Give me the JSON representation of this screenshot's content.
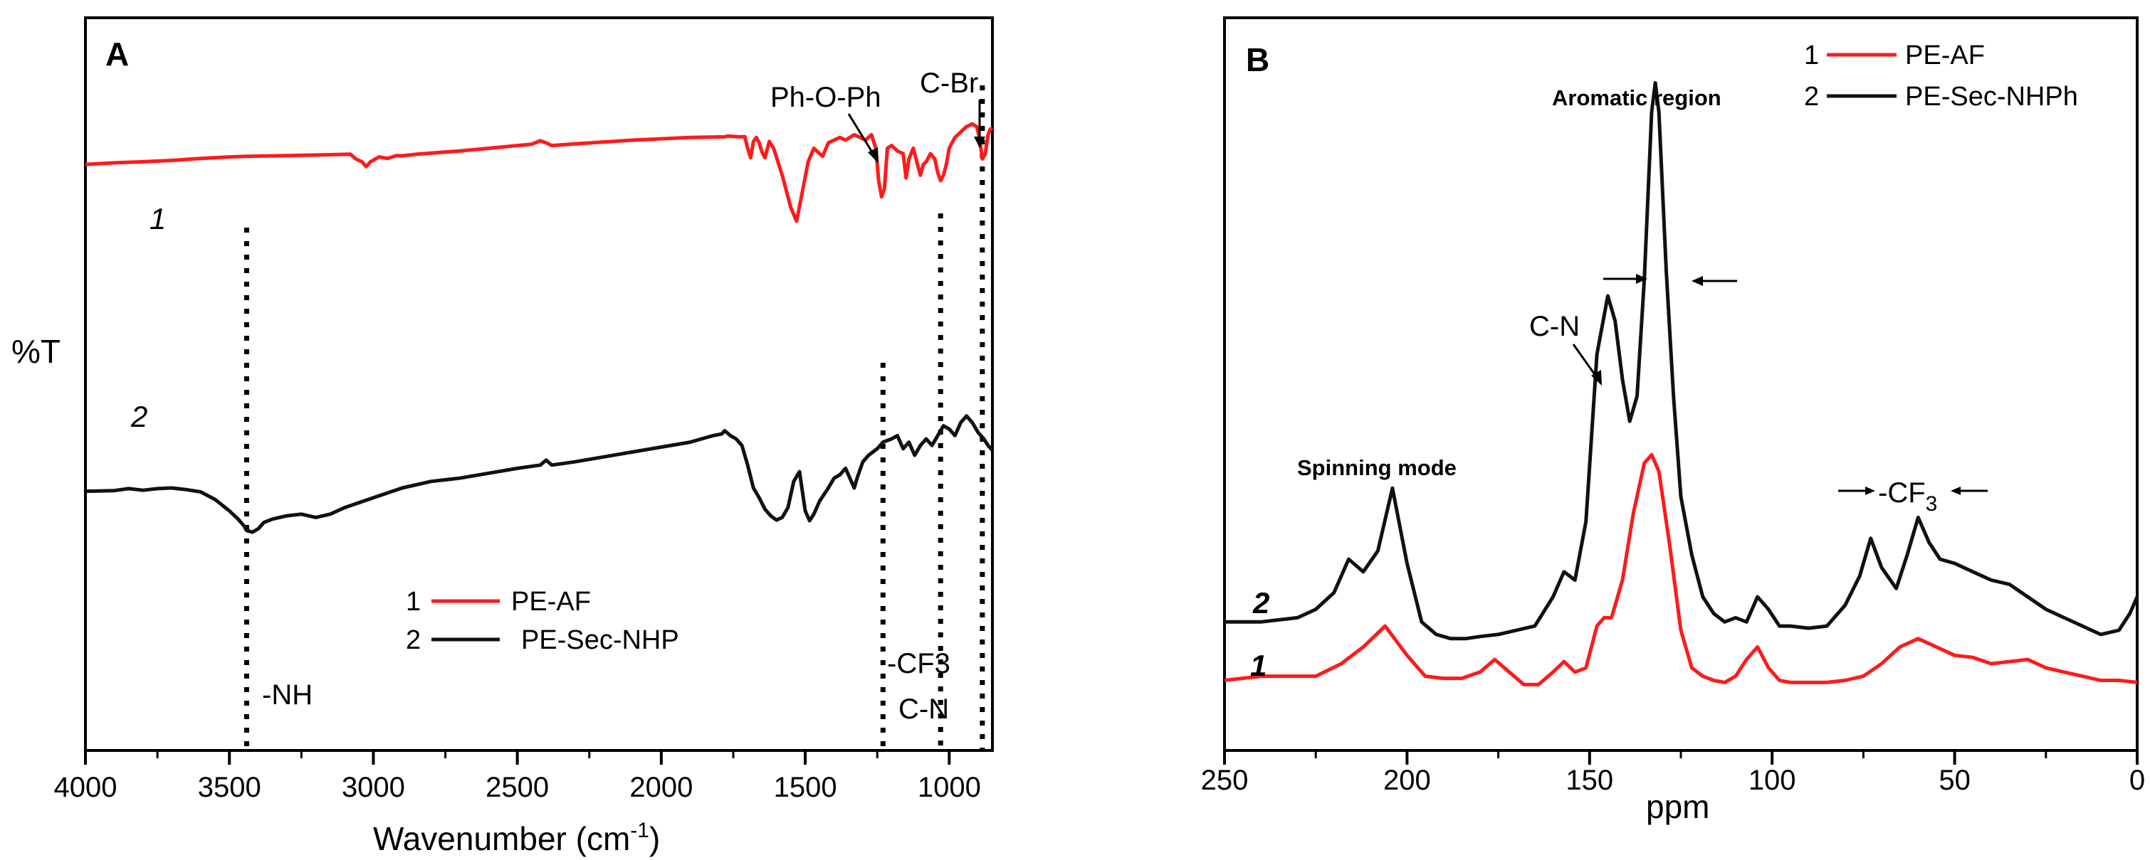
{
  "colors": {
    "series1": "#ff1a1a",
    "series2": "#111111"
  },
  "chart_data": [
    {
      "type": "line",
      "panel": "A",
      "xlabel": "Wavenumber (cm",
      "xlabel_sup": "-1",
      "xlabel_end": ")",
      "ylabel": "%T",
      "xlim": [
        4000,
        850
      ],
      "ylim": [
        0,
        100
      ],
      "x_reversed": true,
      "xticks": [
        4000,
        3500,
        3000,
        2500,
        2000,
        1500,
        1000
      ],
      "xtick_labels": [
        "4000",
        "3500",
        "3000",
        "2500",
        "2000",
        "1500",
        "1000"
      ],
      "legend": {
        "position": "bottom-center",
        "entries": [
          {
            "num": "1",
            "label": "PE-AF"
          },
          {
            "num": "2",
            "label": "PE-Sec-NHP"
          }
        ]
      },
      "curve_labels": [
        "1",
        "2"
      ],
      "vlines": [
        3440,
        1230,
        1030,
        885
      ],
      "annotations": {
        "nh": "-NH",
        "phoph": "Ph-O-Ph",
        "cbr": "C-Br",
        "cf3": "-CF3",
        "cn": "C-N"
      },
      "series": [
        {
          "name": "PE-AF",
          "x": [
            4000,
            3900,
            3800,
            3700,
            3600,
            3500,
            3440,
            3300,
            3150,
            3080,
            3060,
            3040,
            3025,
            3010,
            2980,
            2950,
            2920,
            2900,
            2850,
            2700,
            2500,
            2450,
            2420,
            2400,
            2380,
            2300,
            2100,
            2000,
            1900,
            1780,
            1770,
            1730,
            1710,
            1700,
            1690,
            1680,
            1670,
            1660,
            1650,
            1640,
            1625,
            1610,
            1580,
            1550,
            1530,
            1510,
            1490,
            1470,
            1440,
            1420,
            1400,
            1380,
            1360,
            1330,
            1310,
            1290,
            1270,
            1255,
            1245,
            1235,
            1225,
            1215,
            1200,
            1180,
            1160,
            1150,
            1140,
            1125,
            1110,
            1100,
            1090,
            1080,
            1065,
            1050,
            1040,
            1030,
            1020,
            1010,
            1000,
            980,
            960,
            940,
            920,
            905,
            895,
            885,
            875,
            865,
            858,
            850
          ],
          "y": [
            76,
            76.6,
            77,
            77.5,
            78.2,
            78.8,
            79,
            79.3,
            79.6,
            79.8,
            78,
            77,
            75.2,
            77,
            78.8,
            78.2,
            79.3,
            79.2,
            79.8,
            81,
            83,
            83.5,
            84.8,
            84,
            83,
            83.6,
            85,
            85.5,
            86,
            86.2,
            86.5,
            86.2,
            86.3,
            82,
            78.5,
            84.5,
            86,
            84,
            80.5,
            78.5,
            84.5,
            82,
            72,
            60,
            55,
            66,
            77,
            82,
            79,
            84,
            85,
            86,
            85,
            87,
            86,
            85,
            87,
            82,
            70,
            64,
            67,
            82,
            83,
            81,
            80,
            71,
            78,
            82,
            76,
            72,
            76,
            77,
            80,
            78,
            73,
            70,
            72,
            76,
            82,
            86,
            88,
            90,
            91,
            90,
            86,
            78,
            80,
            87,
            89,
            89.5
          ],
          "y_range": [
            0,
            100
          ]
        },
        {
          "name": "PE-Sec-NHP",
          "x": [
            4000,
            3900,
            3850,
            3800,
            3750,
            3700,
            3650,
            3600,
            3550,
            3500,
            3470,
            3450,
            3440,
            3420,
            3400,
            3380,
            3350,
            3300,
            3250,
            3200,
            3150,
            3100,
            3000,
            2900,
            2800,
            2700,
            2600,
            2500,
            2420,
            2400,
            2380,
            2300,
            2200,
            2100,
            2000,
            1900,
            1820,
            1790,
            1780,
            1760,
            1740,
            1720,
            1700,
            1680,
            1660,
            1640,
            1620,
            1600,
            1580,
            1560,
            1540,
            1520,
            1500,
            1485,
            1470,
            1450,
            1420,
            1400,
            1380,
            1360,
            1340,
            1330,
            1320,
            1300,
            1280,
            1250,
            1230,
            1200,
            1180,
            1160,
            1140,
            1120,
            1100,
            1080,
            1060,
            1040,
            1020,
            1000,
            980,
            960,
            940,
            920,
            900,
            880,
            865,
            850
          ],
          "y": [
            39,
            39.2,
            39.8,
            39.3,
            39.8,
            40,
            39.5,
            38.8,
            36.5,
            33,
            30.5,
            28.5,
            27,
            26.5,
            27.5,
            29.5,
            30.5,
            31.5,
            32,
            31,
            32,
            34,
            37,
            40,
            42,
            43,
            44.5,
            46,
            47,
            48.5,
            47,
            48,
            49.5,
            51,
            52.5,
            54,
            56,
            56.5,
            57.5,
            56,
            55,
            53,
            47,
            40,
            37,
            33.5,
            31.5,
            30.2,
            31,
            34,
            42,
            45,
            33,
            30,
            32,
            36,
            40,
            43,
            44,
            46,
            42,
            40,
            43,
            48,
            50,
            52,
            54,
            55,
            56,
            52,
            54,
            50,
            53,
            55,
            53,
            56,
            59,
            58,
            56,
            60,
            62,
            60,
            57,
            55,
            53,
            51.5
          ],
          "y_range": [
            0,
            100
          ]
        }
      ]
    },
    {
      "type": "line",
      "panel": "B",
      "xlabel": "ppm",
      "xlim": [
        250,
        0
      ],
      "x_reversed": true,
      "xticks": [
        250,
        200,
        150,
        100,
        50,
        0
      ],
      "xtick_labels": [
        "250",
        "200",
        "150",
        "100",
        "50",
        "0"
      ],
      "legend": {
        "position": "top-right",
        "entries": [
          {
            "num": "1",
            "label": "PE-AF"
          },
          {
            "num": "2",
            "label": "PE-Sec-NHPh"
          }
        ]
      },
      "curve_labels": [
        "1",
        "2"
      ],
      "annotations": {
        "aromatic": "Aromatic region",
        "cn": "C-N",
        "spinning": "Spinning mode",
        "cf3_prefix": "-CF",
        "cf3_sub": "3"
      },
      "series": [
        {
          "name": "PE-AF",
          "x": [
            250,
            240,
            225,
            218,
            212,
            206,
            200,
            195,
            190,
            185,
            180,
            176,
            172,
            168,
            164,
            160,
            157,
            154,
            151,
            148,
            146,
            144,
            141,
            138,
            135,
            133,
            131,
            128,
            125,
            122,
            119,
            116,
            113,
            110,
            107,
            104,
            101,
            98,
            95,
            90,
            85,
            80,
            75,
            70,
            65,
            60,
            55,
            50,
            45,
            40,
            35,
            30,
            25,
            20,
            15,
            10,
            5,
            0
          ],
          "y": [
            4,
            5,
            5,
            8,
            12,
            17,
            10,
            5,
            4.5,
            4.5,
            6,
            9,
            6,
            3,
            3,
            6,
            8.5,
            6,
            7,
            17,
            19,
            19,
            28,
            44,
            56,
            58,
            54,
            36,
            16,
            7,
            5,
            4,
            3.5,
            5,
            9,
            12,
            7,
            4,
            3.5,
            3.5,
            3.5,
            4,
            5,
            8,
            12,
            14,
            12,
            10,
            9.5,
            8,
            8.5,
            9,
            7,
            6,
            5,
            4,
            4,
            3.5
          ],
          "y_range": [
            0,
            160
          ]
        },
        {
          "name": "PE-Sec-NHPh",
          "x": [
            250,
            240,
            230,
            225,
            220,
            216,
            212,
            208,
            204,
            200,
            196,
            192,
            188,
            184,
            180,
            175,
            170,
            165,
            160,
            157,
            154,
            151,
            148,
            145,
            143,
            141,
            139,
            137,
            135,
            133,
            132,
            131,
            129,
            127,
            125,
            122,
            119,
            116,
            113,
            110,
            107,
            104,
            101,
            98,
            95,
            90,
            85,
            80,
            76,
            73,
            70,
            66,
            63,
            60,
            57,
            54,
            50,
            45,
            40,
            35,
            30,
            25,
            20,
            15,
            10,
            5,
            2,
            0
          ],
          "y": [
            18,
            18,
            19,
            21,
            25,
            33,
            30,
            35,
            50,
            32,
            18,
            15,
            14,
            14,
            14.5,
            15,
            16,
            17,
            24,
            30,
            28,
            42,
            82,
            96,
            90,
            76,
            66,
            72,
            100,
            140,
            147,
            140,
            102,
            72,
            48,
            34,
            24,
            20,
            18,
            19,
            18,
            24,
            21,
            17,
            17,
            16.5,
            17,
            22,
            29,
            38,
            31,
            26,
            34,
            43,
            37,
            33,
            32,
            30,
            28,
            27,
            24,
            21,
            19,
            17,
            15,
            16,
            20,
            24
          ],
          "y_range": [
            0,
            160
          ]
        }
      ]
    }
  ]
}
